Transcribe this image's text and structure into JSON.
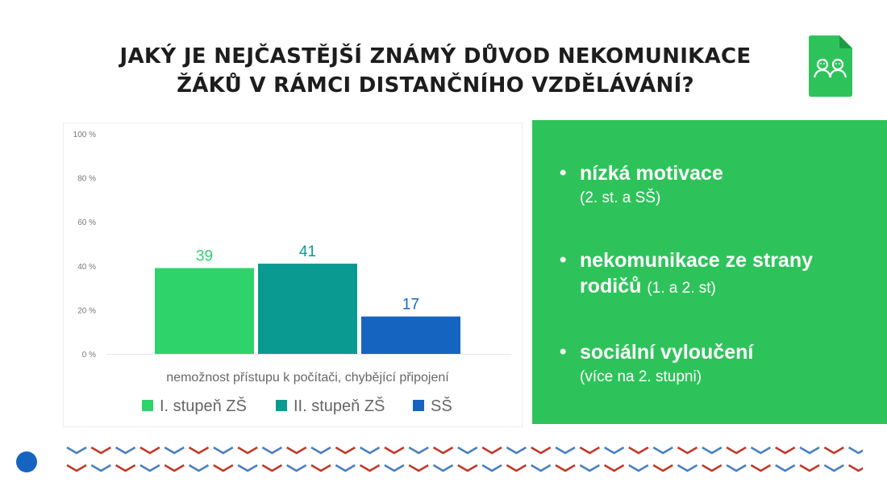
{
  "slide": {
    "title_line1": "JAKÝ JE NEJČASTĚJŠÍ ZNÁMÝ DŮVOD NEKOMUNIKACE",
    "title_line2": "ŽÁKŮ V RÁMCI DISTANČNÍHO VZDĚLÁVÁNÍ?"
  },
  "logo": {
    "icon": "children-document-icon",
    "color": "#2ec35a"
  },
  "chart_data": {
    "type": "bar",
    "categories": [
      "nemožnost přístupu k počítači, chybějící připojení"
    ],
    "series": [
      {
        "name": "I. stupeň ZŠ",
        "values": [
          39
        ],
        "color": "#2ed36a"
      },
      {
        "name": "II. stupeň ZŠ",
        "values": [
          41
        ],
        "color": "#0b9a91"
      },
      {
        "name": "SŠ",
        "values": [
          17
        ],
        "color": "#1565c0"
      }
    ],
    "ylim": [
      0,
      100
    ],
    "yticks": [
      "0 %",
      "20 %",
      "40 %",
      "60 %",
      "80 %",
      "100 %"
    ],
    "data_labels": true,
    "grid": false,
    "legend": "bottom"
  },
  "findings": [
    {
      "main": "nízká motivace",
      "sub": "(2. st. a SŠ)"
    },
    {
      "main": "nekomunikace ze strany rodičů",
      "sub": "(1. a 2. st)"
    },
    {
      "main": "sociální vyloučení",
      "sub": "(více na 2. stupni)"
    }
  ],
  "decor": {
    "accent_blue": "#1565c0",
    "chevron_blue": "#4a7fc0",
    "chevron_red": "#c0392b"
  }
}
